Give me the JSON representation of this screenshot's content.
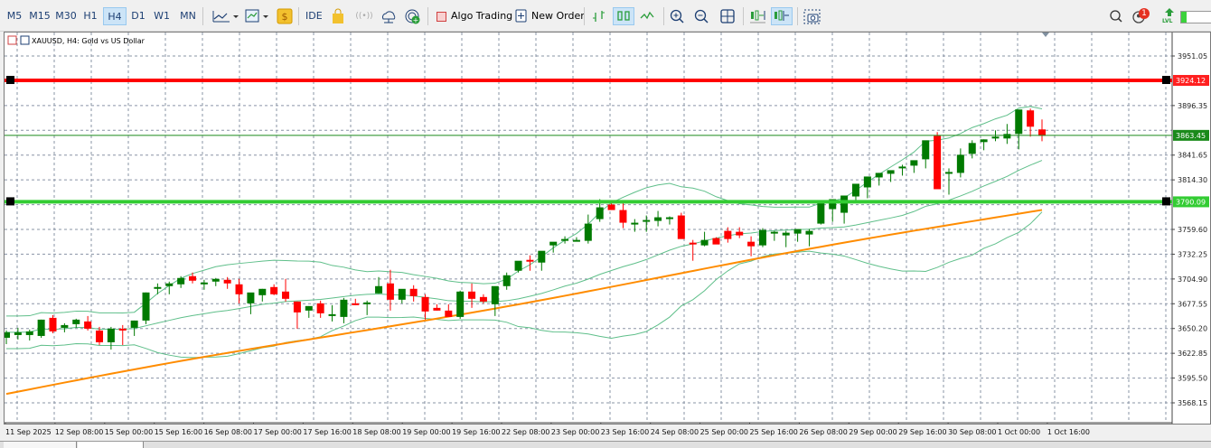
{
  "toolbar": {
    "timeframes": [
      {
        "label": "M5",
        "active": false
      },
      {
        "label": "M15",
        "active": false
      },
      {
        "label": "M30",
        "active": false
      },
      {
        "label": "H1",
        "active": false
      },
      {
        "label": "H4",
        "active": true
      },
      {
        "label": "D1",
        "active": false
      },
      {
        "label": "W1",
        "active": false
      },
      {
        "label": "MN",
        "active": false
      }
    ],
    "ide_label": "IDE",
    "algo_trading_label": "Algo Trading",
    "new_order_label": "New Order",
    "notification_count": "1",
    "lvl_label": "LVL"
  },
  "chart": {
    "symbol_title": "XAUUSD, H4:  Gold vs US Dollar",
    "colors": {
      "bull": "#007a00",
      "bear": "#ff0000",
      "grid": "#8a94a6",
      "bands": "#5fbf8a",
      "ma": "#ff8c00",
      "resistance": "#ff0000",
      "support": "#33cc33",
      "bid_line": "#1a8a1a"
    },
    "price_labels": [
      "3951.05",
      "3896.35",
      "3841.65",
      "3814.30",
      "3759.60",
      "3732.25",
      "3704.90",
      "3677.55",
      "3650.20",
      "3622.85",
      "3595.50",
      "3568.15"
    ],
    "resistance_label": "3924.12",
    "bid_label": "3863.45",
    "support_label": "3790.09",
    "time_labels": [
      "11 Sep 2025",
      "12 Sep 08:00",
      "15 Sep 00:00",
      "15 Sep 16:00",
      "16 Sep 08:00",
      "17 Sep 00:00",
      "17 Sep 16:00",
      "18 Sep 08:00",
      "19 Sep 00:00",
      "19 Sep 16:00",
      "22 Sep 08:00",
      "23 Sep 00:00",
      "23 Sep 16:00",
      "24 Sep 08:00",
      "25 Sep 00:00",
      "25 Sep 16:00",
      "26 Sep 08:00",
      "29 Sep 00:00",
      "29 Sep 16:00",
      "30 Sep 08:00",
      "1 Oct 00:00",
      "1 Oct 16:00"
    ]
  },
  "chart_data": {
    "type": "candlestick",
    "title": "XAUUSD, H4: Gold vs US Dollar",
    "ylim": [
      3550,
      3975
    ],
    "horizontal_lines": [
      {
        "name": "resistance",
        "value": 3924.12,
        "color": "#ff0000"
      },
      {
        "name": "bid",
        "value": 3863.45,
        "color": "#1a8a1a"
      },
      {
        "name": "support",
        "value": 3790.09,
        "color": "#33cc33"
      }
    ],
    "candles": [
      [
        3640,
        3648,
        3633,
        3646
      ],
      [
        3643,
        3651,
        3638,
        3646
      ],
      [
        3643,
        3649,
        3637,
        3647
      ],
      [
        3642,
        3660,
        3640,
        3660
      ],
      [
        3662,
        3665,
        3645,
        3647
      ],
      [
        3651,
        3656,
        3646,
        3654
      ],
      [
        3655,
        3661,
        3651,
        3660
      ],
      [
        3658,
        3664,
        3648,
        3650
      ],
      [
        3648,
        3652,
        3632,
        3635
      ],
      [
        3635,
        3652,
        3627,
        3650
      ],
      [
        3650,
        3654,
        3632,
        3648
      ],
      [
        3651,
        3659,
        3642,
        3659
      ],
      [
        3659,
        3690,
        3655,
        3690
      ],
      [
        3696,
        3700,
        3688,
        3696
      ],
      [
        3697,
        3702,
        3688,
        3700
      ],
      [
        3699,
        3708,
        3695,
        3706
      ],
      [
        3708,
        3712,
        3700,
        3703
      ],
      [
        3701,
        3704,
        3693,
        3701
      ],
      [
        3702,
        3706,
        3697,
        3705
      ],
      [
        3704,
        3707,
        3694,
        3700
      ],
      [
        3699,
        3705,
        3678,
        3688
      ],
      [
        3678,
        3682,
        3666,
        3690
      ],
      [
        3687,
        3694,
        3680,
        3694
      ],
      [
        3696,
        3699,
        3687,
        3688
      ],
      [
        3691,
        3705,
        3680,
        3683
      ],
      [
        3680,
        3680,
        3650,
        3668
      ],
      [
        3670,
        3675,
        3662,
        3675
      ],
      [
        3678,
        3681,
        3662,
        3667
      ],
      [
        3664,
        3676,
        3658,
        3666
      ],
      [
        3663,
        3684,
        3656,
        3682
      ],
      [
        3678,
        3683,
        3676,
        3677
      ],
      [
        3677,
        3681,
        3665,
        3679
      ],
      [
        3689,
        3707,
        3689,
        3697
      ],
      [
        3700,
        3715,
        3670,
        3682
      ],
      [
        3682,
        3688,
        3678,
        3694
      ],
      [
        3694,
        3698,
        3680,
        3686
      ],
      [
        3685,
        3688,
        3660,
        3669
      ],
      [
        3673,
        3677,
        3670,
        3670
      ],
      [
        3670,
        3677,
        3667,
        3663
      ],
      [
        3663,
        3692,
        3661,
        3691
      ],
      [
        3691,
        3700,
        3673,
        3683
      ],
      [
        3685,
        3688,
        3678,
        3680
      ],
      [
        3677,
        3693,
        3664,
        3697
      ],
      [
        3697,
        3712,
        3693,
        3709
      ],
      [
        3714,
        3724,
        3712,
        3725
      ],
      [
        3726,
        3731,
        3714,
        3725
      ],
      [
        3723,
        3732,
        3714,
        3736
      ],
      [
        3742,
        3745,
        3734,
        3746
      ],
      [
        3747,
        3752,
        3744,
        3749
      ],
      [
        3748,
        3751,
        3747,
        3748
      ],
      [
        3747,
        3776,
        3744,
        3766
      ],
      [
        3771,
        3793,
        3768,
        3784
      ],
      [
        3787,
        3792,
        3782,
        3781
      ],
      [
        3781,
        3790,
        3761,
        3767
      ],
      [
        3765,
        3771,
        3757,
        3767
      ],
      [
        3770,
        3775,
        3757,
        3770
      ],
      [
        3769,
        3780,
        3763,
        3773
      ],
      [
        3773,
        3774,
        3765,
        3773
      ],
      [
        3775,
        3778,
        3750,
        3749
      ],
      [
        3745,
        3748,
        3725,
        3744
      ],
      [
        3742,
        3757,
        3741,
        3748
      ],
      [
        3750,
        3751,
        3745,
        3743
      ],
      [
        3758,
        3762,
        3745,
        3749
      ],
      [
        3757,
        3762,
        3750,
        3753
      ],
      [
        3746,
        3752,
        3730,
        3741
      ],
      [
        3742,
        3761,
        3740,
        3759
      ],
      [
        3755,
        3758,
        3747,
        3757
      ],
      [
        3753,
        3758,
        3740,
        3756
      ],
      [
        3755,
        3758,
        3746,
        3760
      ],
      [
        3754,
        3760,
        3741,
        3758
      ],
      [
        3766,
        3779,
        3765,
        3790
      ],
      [
        3782,
        3790,
        3768,
        3793
      ],
      [
        3778,
        3792,
        3766,
        3797
      ],
      [
        3796,
        3809,
        3790,
        3810
      ],
      [
        3806,
        3816,
        3794,
        3818
      ],
      [
        3817,
        3822,
        3808,
        3822
      ],
      [
        3821,
        3823,
        3812,
        3825
      ],
      [
        3828,
        3831,
        3819,
        3829
      ],
      [
        3830,
        3834,
        3822,
        3836
      ],
      [
        3837,
        3840,
        3827,
        3858
      ],
      [
        3863,
        3867,
        3810,
        3804
      ],
      [
        3822,
        3827,
        3798,
        3823
      ],
      [
        3822,
        3849,
        3817,
        3842
      ],
      [
        3843,
        3858,
        3838,
        3855
      ],
      [
        3856,
        3859,
        3847,
        3859
      ],
      [
        3860,
        3869,
        3857,
        3862
      ],
      [
        3860,
        3876,
        3854,
        3865
      ],
      [
        3865,
        3880,
        3848,
        3892
      ],
      [
        3891,
        3893,
        3862,
        3873
      ],
      [
        3870,
        3881,
        3857,
        3863
      ]
    ]
  }
}
